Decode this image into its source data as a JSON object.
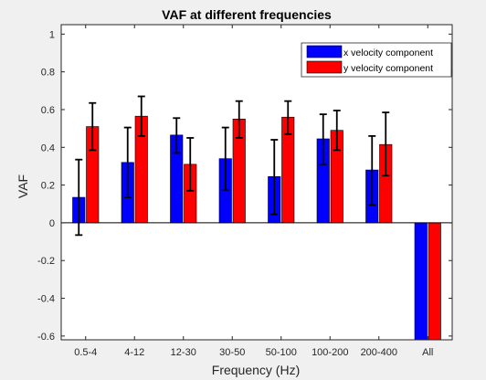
{
  "chart_data": {
    "type": "bar",
    "title": "VAF at different frequencies",
    "xlabel": "Frequency (Hz)",
    "ylabel": "VAF",
    "categories": [
      "0.5-4",
      "4-12",
      "12-30",
      "30-50",
      "50-100",
      "100-200",
      "200-400",
      "All"
    ],
    "ylim": [
      -0.62,
      1.05
    ],
    "yticks": [
      1,
      0.8,
      0.6,
      0.4,
      0.2,
      0,
      -0.2,
      -0.4,
      -0.6
    ],
    "ytick_labels": [
      "1",
      "0.8",
      "0.6",
      "0.4",
      "0.2",
      "0",
      "-0.2",
      "-0.4",
      "-0.6"
    ],
    "legend_position": "top-right",
    "grid": false,
    "series": [
      {
        "name": "x velocity component",
        "color": "#0000ff",
        "values": [
          0.135,
          0.32,
          0.465,
          0.34,
          0.245,
          0.445,
          0.28,
          -0.62
        ],
        "err_low": [
          -0.065,
          0.135,
          0.37,
          0.175,
          0.045,
          0.31,
          0.095,
          null
        ],
        "err_high": [
          0.335,
          0.505,
          0.555,
          0.505,
          0.44,
          0.575,
          0.46,
          null
        ]
      },
      {
        "name": "y velocity component",
        "color": "#ff0000",
        "values": [
          0.51,
          0.565,
          0.31,
          0.55,
          0.56,
          0.49,
          0.415,
          -0.62
        ],
        "err_low": [
          0.385,
          0.46,
          0.17,
          0.45,
          0.47,
          0.385,
          0.25,
          null
        ],
        "err_high": [
          0.635,
          0.67,
          0.45,
          0.645,
          0.645,
          0.595,
          0.585,
          null
        ]
      }
    ]
  }
}
